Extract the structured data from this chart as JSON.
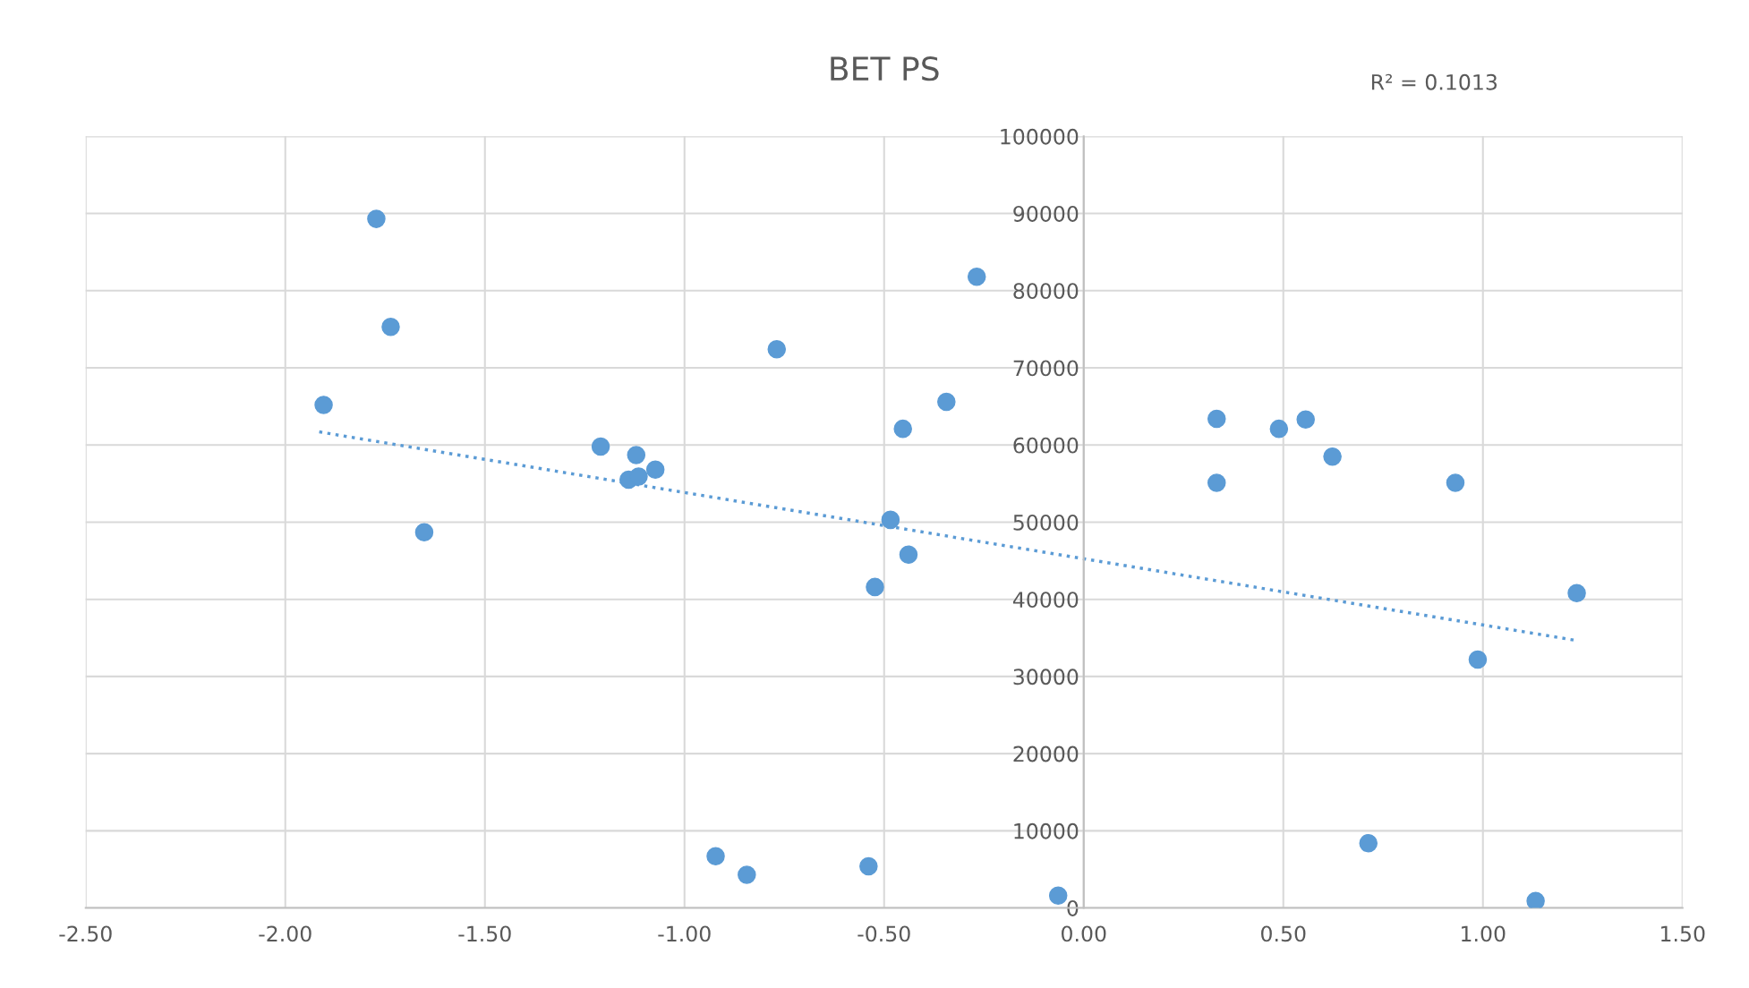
{
  "chart_data": {
    "type": "scatter",
    "title": "BET PS",
    "annotations": [
      "R² = 0.1013"
    ],
    "xlim": [
      -2.5,
      1.5
    ],
    "xticks": [
      {
        "value": -2.5,
        "label": "-2.50"
      },
      {
        "value": -2.0,
        "label": "-2.00"
      },
      {
        "value": -1.5,
        "label": "-1.50"
      },
      {
        "value": -1.0,
        "label": "-1.00"
      },
      {
        "value": -0.5,
        "label": "-0.50"
      },
      {
        "value": 0,
        "label": "0.00"
      },
      {
        "value": 0.5,
        "label": "0.50"
      },
      {
        "value": 1.0,
        "label": "1.00"
      },
      {
        "value": 1.5,
        "label": "1.50"
      }
    ],
    "ylim": [
      0,
      100000
    ],
    "yticks": [
      0,
      10000,
      20000,
      30000,
      40000,
      50000,
      60000,
      70000,
      80000,
      90000,
      100000
    ],
    "grid": true,
    "series": [
      {
        "marker": "circle",
        "color": "#5b9bd5",
        "x": [
          -1.904,
          -1.772,
          -1.736,
          -1.652,
          -1.21,
          -1.121,
          -1.14,
          -1.115,
          -1.073,
          -0.922,
          -0.844,
          -0.769,
          -0.539,
          -0.523,
          -0.484,
          -0.453,
          -0.439,
          -0.344,
          -0.268,
          -0.064,
          0.333,
          0.333,
          0.489,
          0.556,
          0.623,
          0.713,
          0.931,
          0.987,
          1.132,
          1.235
        ],
        "values": [
          65200,
          89300,
          75300,
          48700,
          59800,
          58700,
          55500,
          55900,
          56800,
          6700,
          4300,
          72400,
          5400,
          41600,
          50300,
          62100,
          45800,
          65600,
          81800,
          1600,
          63400,
          55100,
          62100,
          63300,
          58500,
          8400,
          55100,
          32200,
          900,
          40800
        ]
      },
      {
        "type": "line",
        "marker": "none",
        "color": "#5b9bd5",
        "line_style": "dotted",
        "x": [
          -1.915,
          1.23
        ],
        "values": [
          61700,
          34700
        ]
      }
    ]
  }
}
